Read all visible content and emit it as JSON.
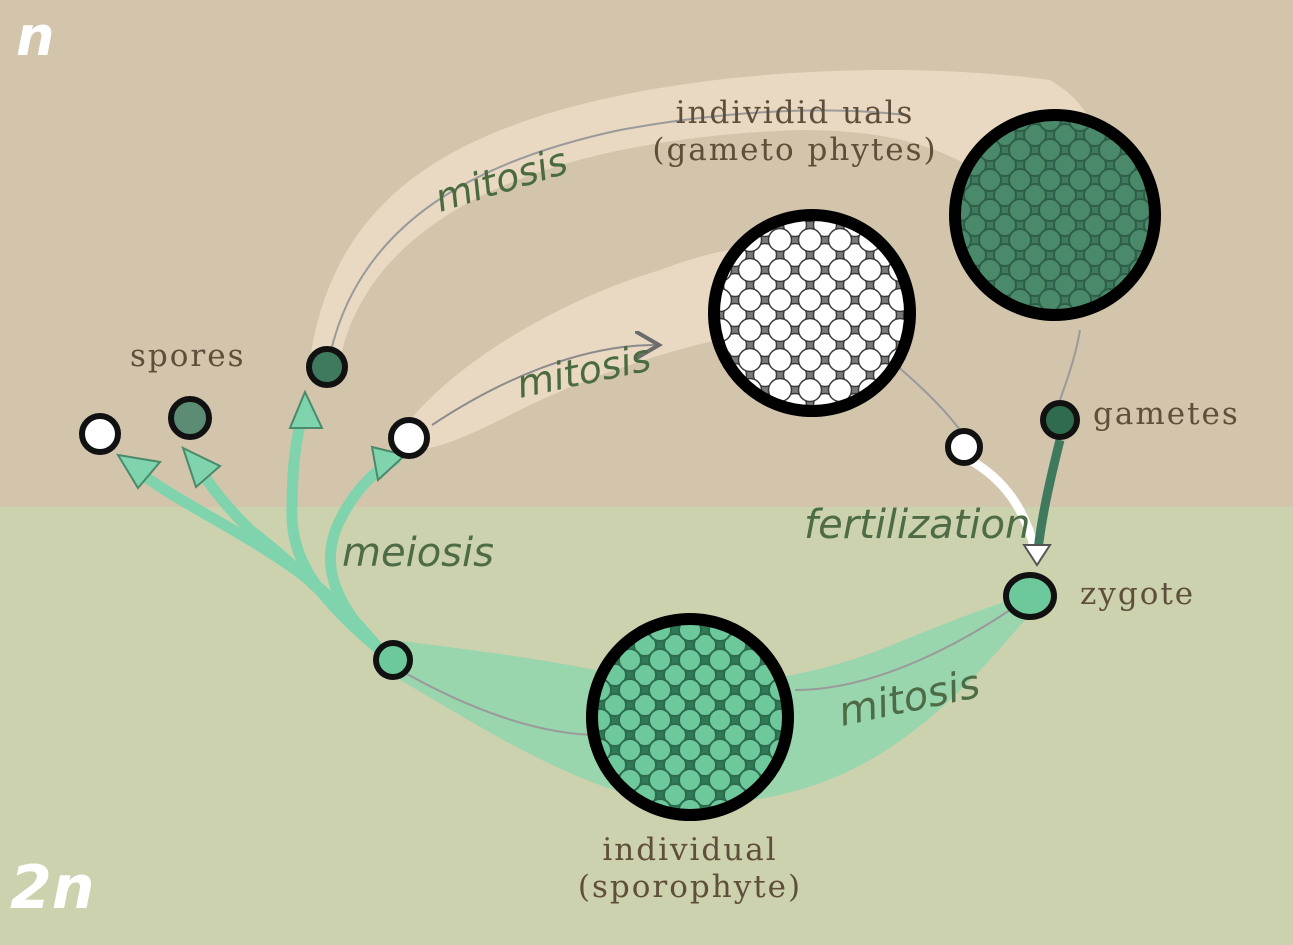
{
  "ploidy": {
    "haploid": "n",
    "diploid": "2n"
  },
  "labels": {
    "individuals": "individid uals",
    "gametophytes": "(gameto phytes)",
    "spores": "spores",
    "gametes": "gametes",
    "zygote": "zygote",
    "individual": "individual",
    "sporophyte": "(sporophyte)"
  },
  "processes": {
    "mitosis_upper": "mitosis",
    "mitosis_middle": "mitosis",
    "meiosis": "meiosis",
    "fertilization": "fertilization",
    "mitosis_lower": "mitosis"
  },
  "colors": {
    "haploid_bg": "#d3c4ac",
    "diploid_bg": "#cdd2ae",
    "band_haploid": "#ebdcc4",
    "band_diploid": "#8fd6ad",
    "arrow_green": "#7fd4ad",
    "dark_cell": "#3f7a5e",
    "light_cell": "#6dc99c",
    "process_text": "#4a6b3f",
    "label_text": "#5e4e3a"
  }
}
